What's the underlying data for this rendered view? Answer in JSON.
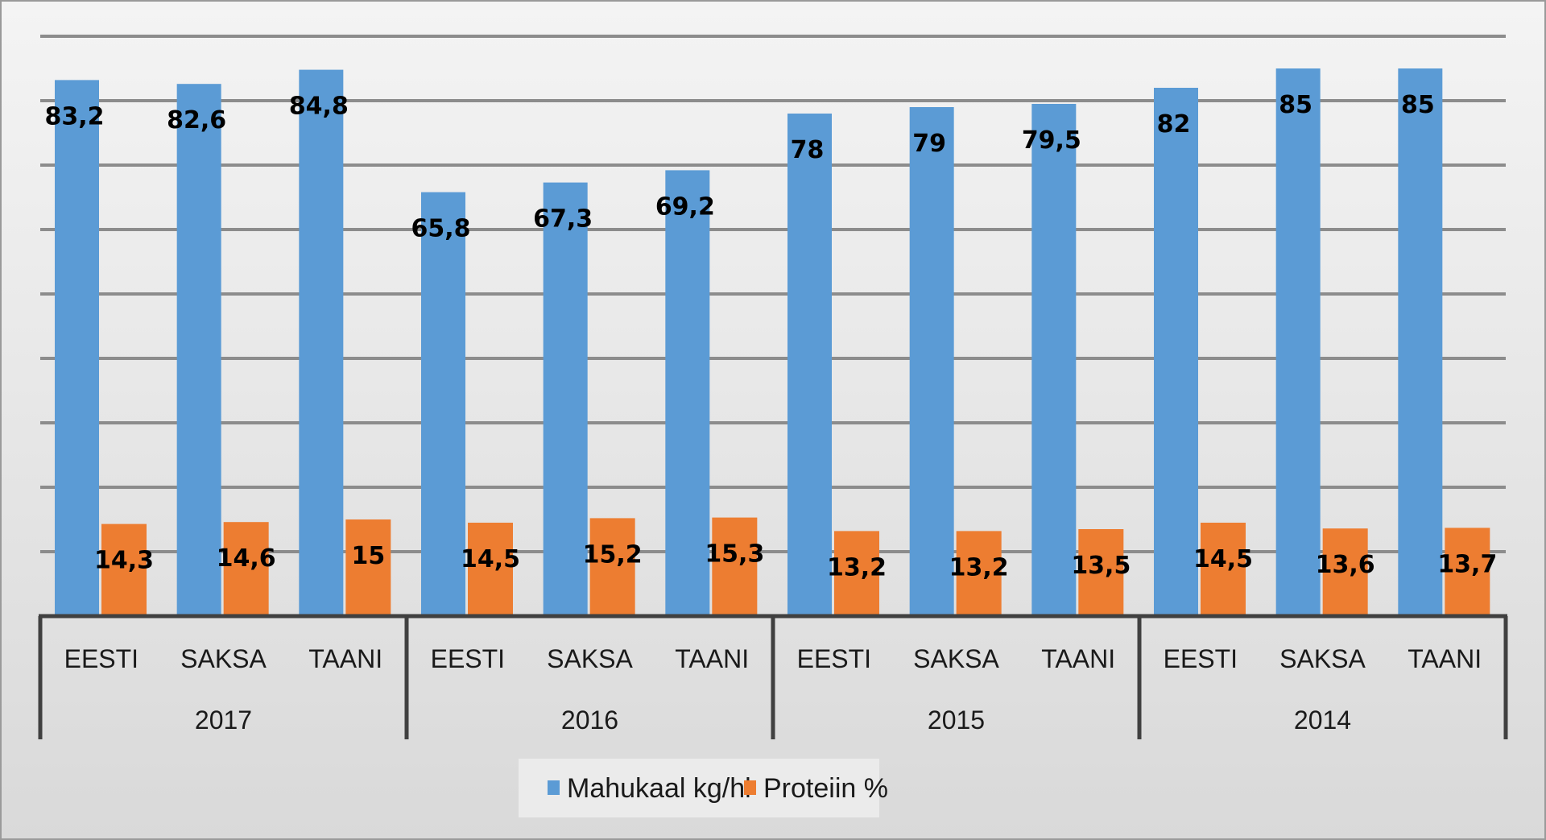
{
  "chart_data": {
    "type": "bar",
    "title": "",
    "xlabel": "",
    "ylabel": "",
    "ylim": [
      0,
      90
    ],
    "grid": true,
    "gridline_step": 10,
    "y_tick_labels_visible": false,
    "legend_position": "bottom",
    "groups": [
      {
        "label": "2017",
        "categories": [
          "EESTI",
          "SAKSA",
          "TAANI"
        ]
      },
      {
        "label": "2016",
        "categories": [
          "EESTI",
          "SAKSA",
          "TAANI"
        ]
      },
      {
        "label": "2015",
        "categories": [
          "EESTI",
          "SAKSA",
          "TAANI"
        ]
      },
      {
        "label": "2014",
        "categories": [
          "EESTI",
          "SAKSA",
          "TAANI"
        ]
      }
    ],
    "series": [
      {
        "name": "Mahukaal kg/hl",
        "color": "#5b9bd5",
        "values": [
          83.2,
          82.6,
          84.8,
          65.8,
          67.3,
          69.2,
          78,
          79,
          79.5,
          82,
          85,
          85
        ],
        "labels": [
          "83,2",
          "82,6",
          "84,8",
          "65,8",
          "67,3",
          "69,2",
          "78",
          "79",
          "79,5",
          "82",
          "85",
          "85"
        ]
      },
      {
        "name": "Proteiin %",
        "color": "#ed7d31",
        "values": [
          14.3,
          14.6,
          15,
          14.5,
          15.2,
          15.3,
          13.2,
          13.2,
          13.5,
          14.5,
          13.6,
          13.7
        ],
        "labels": [
          "14,3",
          "14,6",
          "15",
          "14,5",
          "15,2",
          "15,3",
          "13,2",
          "13,2",
          "13,5",
          "14,5",
          "13,6",
          "13,7"
        ]
      }
    ]
  }
}
